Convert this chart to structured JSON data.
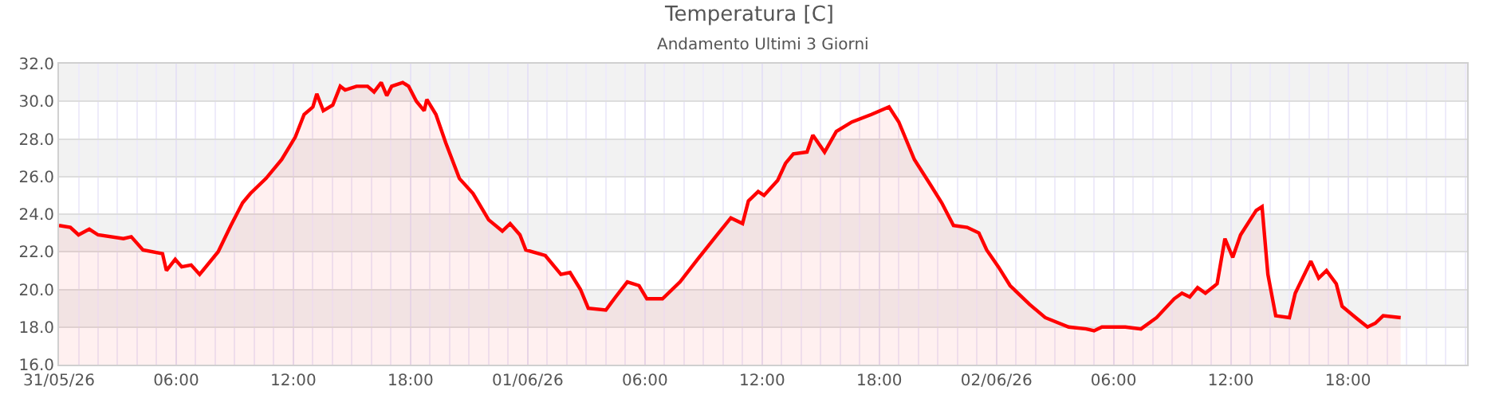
{
  "chart_data": {
    "type": "area",
    "title": "Temperatura [C]",
    "subtitle": "Andamento Ultimi 3 Giorni",
    "x": [
      "--05-31T00:00",
      "--05-31T00:35",
      "--05-31T01:00",
      "--05-31T01:33",
      "--05-31T02:00",
      "--05-31T03:18",
      "--05-31T03:42",
      "--05-31T04:18",
      "--05-31T05:18",
      "--05-31T05:30",
      "--05-31T05:57",
      "--05-31T06:17",
      "--05-31T06:46",
      "--05-31T07:12",
      "--05-31T08:09",
      "--05-31T08:48",
      "--05-31T09:24",
      "--05-31T09:48",
      "--05-31T10:36",
      "--05-31T11:24",
      "--05-31T12:06",
      "--05-31T12:33",
      "--05-31T13:00",
      "--05-31T13:12",
      "--05-31T13:32",
      "--05-31T14:01",
      "--05-31T14:24",
      "--05-31T14:39",
      "--05-31T15:14",
      "--05-31T15:48",
      "--05-31T16:08",
      "--05-31T16:30",
      "--05-31T16:47",
      "--05-31T17:02",
      "--05-31T17:36",
      "--05-31T17:54",
      "--05-31T18:18",
      "--05-31T18:42",
      "--05-31T18:50",
      "--05-31T19:18",
      "--05-31T19:48",
      "--05-31T20:30",
      "--05-31T21:12",
      "--05-31T22:00",
      "--05-31T22:42",
      "--05-31T23:06",
      "--05-31T23:36",
      "--05-31T23:54",
      "--06-01T00:54",
      "--06-01T01:42",
      "--06-01T02:10",
      "--06-01T02:42",
      "--06-01T03:06",
      "--06-01T04:00",
      "--06-01T04:30",
      "--06-01T05:06",
      "--06-01T05:42",
      "--06-01T06:06",
      "--06-01T06:54",
      "--06-01T07:48",
      "--06-01T08:42",
      "--06-01T09:42",
      "--06-01T10:24",
      "--06-01T11:00",
      "--06-01T11:18",
      "--06-01T11:48",
      "--06-01T12:06",
      "--06-01T12:48",
      "--06-01T13:12",
      "--06-01T13:36",
      "--06-01T14:18",
      "--06-01T14:36",
      "--06-01T15:12",
      "--06-01T15:48",
      "--06-01T16:36",
      "--06-01T17:36",
      "--06-01T18:30",
      "--06-01T19:00",
      "--06-01T19:48",
      "--06-01T20:36",
      "--06-01T21:12",
      "--06-01T21:48",
      "--06-01T22:30",
      "--06-01T23:06",
      "--06-01T23:30",
      "--06-02T00:06",
      "--06-02T00:42",
      "--06-02T01:42",
      "--06-02T02:30",
      "--06-02T03:42",
      "--06-02T04:36",
      "--06-02T05:00",
      "--06-02T05:24",
      "--06-02T06:36",
      "--06-02T07:24",
      "--06-02T08:12",
      "--06-02T09:06",
      "--06-02T09:30",
      "--06-02T09:54",
      "--06-02T10:18",
      "--06-02T10:42",
      "--06-02T11:18",
      "--06-02T11:42",
      "--06-02T12:06",
      "--06-02T12:30",
      "--06-02T13:18",
      "--06-02T13:36",
      "--06-02T13:54",
      "--06-02T14:18",
      "--06-02T15:00",
      "--06-02T15:18",
      "--06-02T16:06",
      "--06-02T16:30",
      "--06-02T16:54",
      "--06-02T17:24",
      "--06-02T17:42",
      "--06-02T18:24",
      "--06-02T19:00",
      "--06-02T19:24",
      "--06-02T19:48",
      "--06-02T20:42"
    ],
    "series": [
      {
        "color": "#ff0000",
        "values": [
          23.4,
          23.3,
          22.9,
          23.2,
          22.9,
          22.7,
          22.8,
          22.1,
          21.9,
          21.0,
          21.6,
          21.2,
          21.3,
          20.8,
          22.0,
          23.4,
          24.6,
          25.1,
          25.9,
          26.9,
          28.1,
          29.3,
          29.7,
          30.4,
          29.5,
          29.8,
          30.8,
          30.6,
          30.8,
          30.8,
          30.5,
          31.0,
          30.3,
          30.8,
          31.0,
          30.8,
          30.0,
          29.5,
          30.1,
          29.3,
          27.8,
          25.9,
          25.1,
          23.7,
          23.1,
          23.5,
          22.9,
          22.1,
          21.8,
          20.8,
          20.9,
          20.0,
          19.0,
          18.9,
          19.6,
          20.4,
          20.2,
          19.5,
          19.5,
          20.4,
          21.6,
          22.9,
          23.8,
          23.5,
          24.7,
          25.2,
          25.0,
          25.8,
          26.7,
          27.2,
          27.3,
          28.2,
          27.3,
          28.4,
          28.9,
          29.3,
          29.7,
          28.9,
          26.9,
          25.6,
          24.6,
          23.4,
          23.3,
          23.0,
          22.1,
          21.2,
          20.2,
          19.2,
          18.5,
          18.0,
          17.9,
          17.8,
          18.0,
          18.0,
          17.9,
          18.5,
          19.5,
          19.8,
          19.6,
          20.1,
          19.8,
          20.3,
          22.7,
          21.7,
          22.9,
          24.2,
          24.4,
          20.8,
          18.6,
          18.5,
          19.8,
          21.5,
          20.6,
          21.0,
          20.3,
          19.1,
          18.5,
          18.0,
          18.2,
          18.6,
          18.5
        ]
      }
    ],
    "xlim": [
      "--05-31T00:00",
      "--06-03T00:06"
    ],
    "xticks": [
      {
        "value": "--05-31T00:00",
        "label": "31/05/26"
      },
      {
        "value": "--05-31T06:00",
        "label": "06:00"
      },
      {
        "value": "--05-31T12:00",
        "label": "12:00"
      },
      {
        "value": "--05-31T18:00",
        "label": "18:00"
      },
      {
        "value": "--06-01T00:00",
        "label": "01/06/26"
      },
      {
        "value": "--06-01T06:00",
        "label": "06:00"
      },
      {
        "value": "--06-01T12:00",
        "label": "12:00"
      },
      {
        "value": "--06-01T18:00",
        "label": "18:00"
      },
      {
        "value": "--06-02T00:00",
        "label": "02/06/26"
      },
      {
        "value": "--06-02T06:00",
        "label": "06:00"
      },
      {
        "value": "--06-02T12:00",
        "label": "12:00"
      },
      {
        "value": "--06-02T18:00",
        "label": "18:00"
      }
    ],
    "ylim": [
      16,
      32
    ],
    "yticks": [
      {
        "value": 16,
        "label": "16.0"
      },
      {
        "value": 18,
        "label": "18.0"
      },
      {
        "value": 20,
        "label": "20.0"
      },
      {
        "value": 22,
        "label": "22.0"
      },
      {
        "value": 24,
        "label": "24.0"
      },
      {
        "value": 26,
        "label": "26.0"
      },
      {
        "value": 28,
        "label": "28.0"
      },
      {
        "value": 30,
        "label": "30.0"
      },
      {
        "value": 32,
        "label": "32.0"
      }
    ],
    "bands": [
      {
        "axis": "y",
        "from": 18,
        "to": 20,
        "color": "#f2f2f2"
      },
      {
        "axis": "y",
        "from": 22,
        "to": 24,
        "color": "#f2f2f2"
      },
      {
        "axis": "y",
        "from": 26,
        "to": 28,
        "color": "#f2f2f2"
      },
      {
        "axis": "y",
        "from": 30,
        "to": 32,
        "color": "#f2f2f2"
      }
    ],
    "grid": true,
    "line_style": "solid",
    "marker": "none"
  }
}
